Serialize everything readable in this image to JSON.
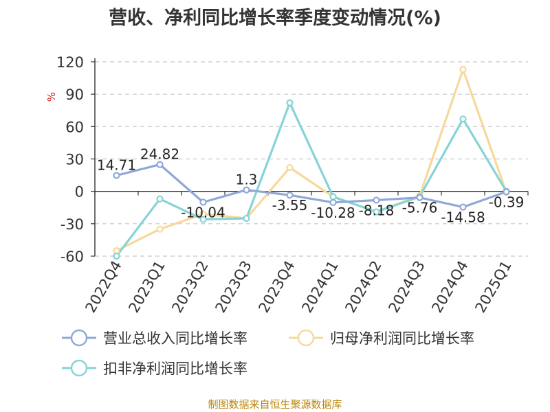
{
  "chart_data": {
    "type": "line",
    "title": "营收、净利同比增长率季度变动情况(%)",
    "ylabel": "%",
    "ylim": [
      -60,
      120
    ],
    "yticks": [
      120,
      90,
      60,
      30,
      0,
      -30,
      -60
    ],
    "grid": true,
    "legend_position": "bottom",
    "categories": [
      "2022Q4",
      "2023Q1",
      "2023Q2",
      "2023Q3",
      "2023Q4",
      "2024Q1",
      "2024Q2",
      "2024Q3",
      "2024Q4",
      "2025Q1"
    ],
    "series": [
      {
        "name": "营业总收入同比增长率",
        "color": "#8fa8d8",
        "values": [
          14.71,
          24.82,
          -10.04,
          1.3,
          -3.55,
          -10.28,
          -8.18,
          -5.76,
          -14.58,
          -0.39
        ],
        "labels": [
          "14.71",
          "24.82",
          "-10.04",
          "1.3",
          "-3.55",
          "-10.28",
          "-8.18",
          "-5.76",
          "-14.58",
          "-0.39"
        ]
      },
      {
        "name": "归母净利润同比增长率",
        "color": "#f8d89a",
        "values": [
          -55,
          -35,
          -21,
          -25,
          22,
          -5,
          -19,
          -4,
          113,
          -1
        ]
      },
      {
        "name": "扣非净利润同比增长率",
        "color": "#86d3d6",
        "values": [
          -60,
          -7,
          -26,
          -25,
          82,
          -5,
          -19,
          -5,
          67,
          0
        ]
      }
    ]
  },
  "footer": {
    "source": "制图数据来自恒生聚源数据库"
  }
}
